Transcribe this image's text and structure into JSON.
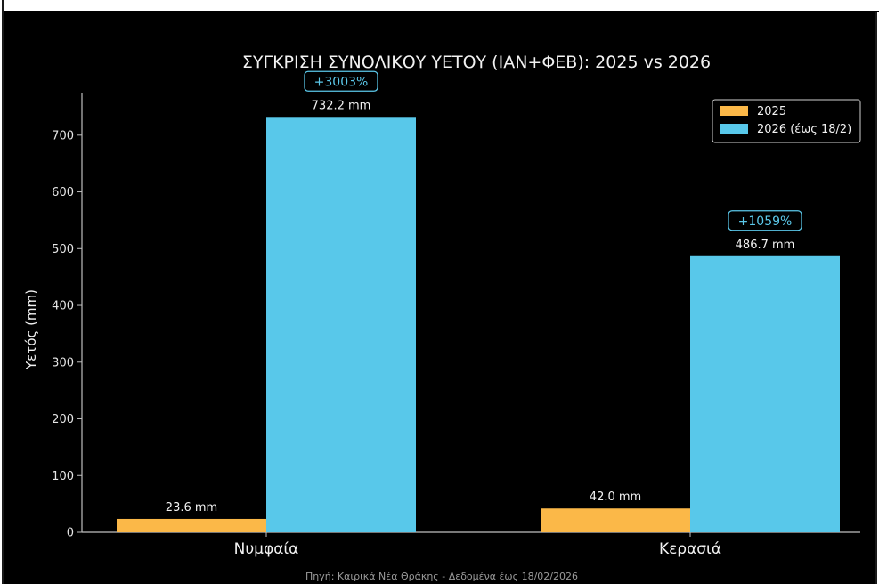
{
  "chart_data": {
    "type": "bar",
    "title": "ΣΥΓΚΡΙΣΗ ΣΥΝΟΛΙΚΟΥ ΥΕΤΟΥ (ΙΑΝ+ΦΕΒ): 2025 vs 2026",
    "xlabel": "",
    "ylabel": "Υετός (mm)",
    "ylim": [
      0,
      775
    ],
    "yticks": [
      0,
      100,
      200,
      300,
      400,
      500,
      600,
      700
    ],
    "categories": [
      "Νυμφαία",
      "Κερασιά"
    ],
    "series": [
      {
        "name": "2025",
        "color": "#fbb848",
        "values": [
          23.6,
          42.0
        ],
        "labels": [
          "23.6 mm",
          "42.0 mm"
        ]
      },
      {
        "name": "2026 (έως 18/2)",
        "color": "#58c8ea",
        "values": [
          732.2,
          486.7
        ],
        "labels": [
          "732.2 mm",
          "486.7 mm"
        ]
      }
    ],
    "change_labels": [
      "+3003%",
      "+1059%"
    ],
    "legend_position": "top-right",
    "grid": false,
    "source": "Πηγή: Καιρικά Νέα Θράκης - Δεδομένα έως 18/02/2026"
  }
}
